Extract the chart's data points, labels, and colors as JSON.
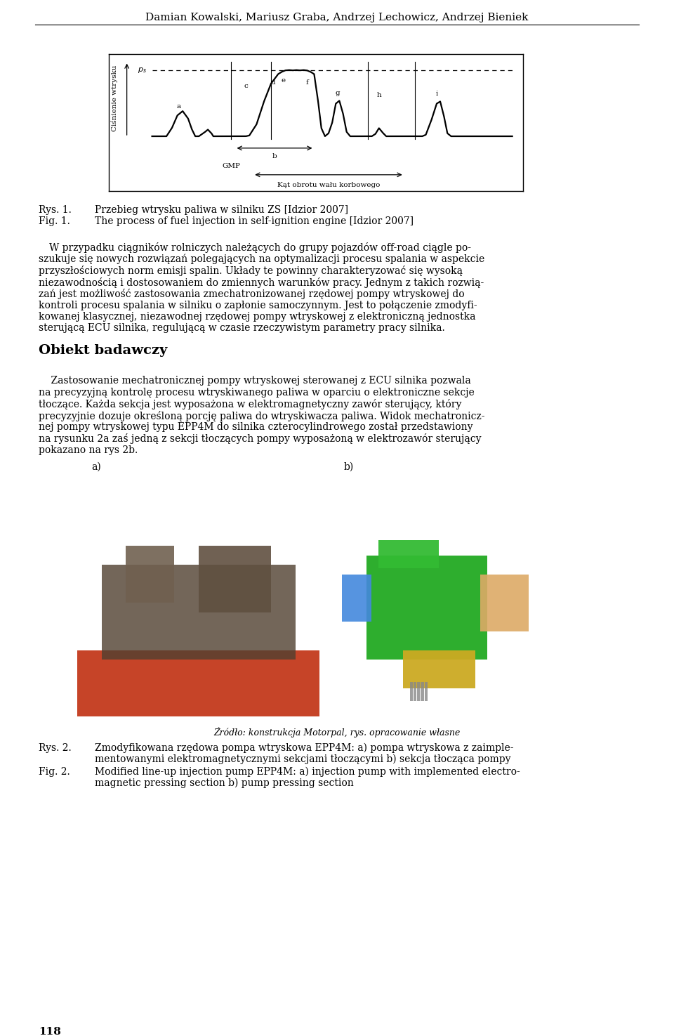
{
  "page_title": "Damian Kowalski, Mariusz Graba, Andrzej Lechowicz, Andrzej Bieniek",
  "rys1_pl": "Przebieg wtrysku paliwa w silniku ZS [Idzior 2007]",
  "rys1_en": "The process of fuel injection in self-ignition engine [Idzior 2007]",
  "section_title": "Obiekt badawczy",
  "para1_lines": [
    "W przypadku ciągników rolniczych należących do grupy pojazdów off-road ciągle po-",
    "szukuje się nowych rozwiązań polegających na optymalizacji procesu spalania w aspekcie",
    "przyszłościowych norm emisji spalin. Układy te powinny charakteryzować się wysoką",
    "niezawodnością i dostosowaniem do zmiennych warunków pracy. Jednym z takich rozwią-",
    "zań jest możliwość zastosowania zmechatronizowanej rzędowej pompy wtryskowej do",
    "kontroli procesu spalania w silniku o zapłonie samoczynnym. Jest to połączenie zmodyfi-",
    "kowanej klasycznej, niezawodnej rzędowej pompy wtryskowej z elektroniczną jednostka",
    "sterującą ECU silnika, regulującą w czasie rzeczywistym parametry pracy silnika."
  ],
  "para2_lines": [
    "    Zastosowanie mechatronicznej pompy wtryskowej sterowanej z ECU silnika pozwala",
    "na precyzyjną kontrolę procesu wtryskiwanego paliwa w oparciu o elektroniczne sekcje",
    "tłoczące. Każda sekcja jest wyposażona w elektromagnetyczny zawór sterujący, który",
    "precyzyjnie dozuje określoną porcję paliwa do wtryskiwacza paliwa. Widok mechatronicz-",
    "nej pompy wtryskowej typu EPP4M do silnika czterocylindrowego został przedstawiony",
    "na rysunku 2a zaś jedną z sekcji tłoczących pompy wyposażoną w elektrozawór sterujący",
    "pokazano na rys 2b."
  ],
  "source_caption": "Źródło: konstrukcja Motorpal, rys. opracowanie własne",
  "rys2_pl_label": "Rys. 2.",
  "rys2_pl_line1": "Zmodyfikowana rzędowa pompa wtryskowa EPP4M: a) pompa wtryskowa z zaimple-",
  "rys2_pl_line2": "mentowanymi elektromagnetycznymi sekcjami tłoczącymi b) sekcja tłocząca pompy",
  "rys2_en_label": "Fig. 2.",
  "rys2_en_line1": "Modified line-up injection pump EPP4M: a) injection pump with implemented electro-",
  "rys2_en_line2": "magnetic pressing section b) pump pressing section",
  "page_number": "118",
  "bg": "#ffffff",
  "fg": "#000000"
}
